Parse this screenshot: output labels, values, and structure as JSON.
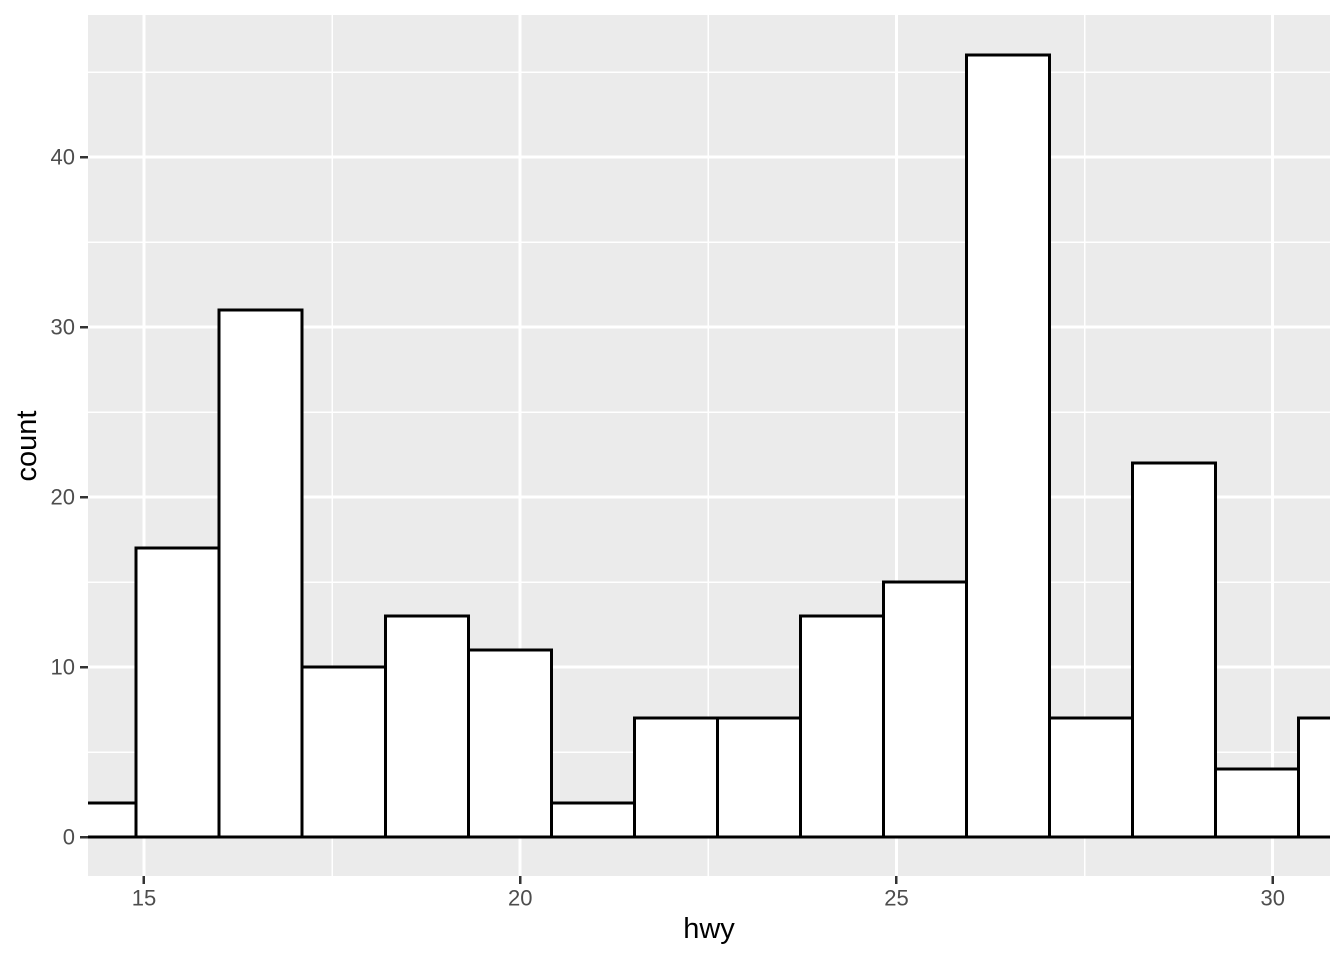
{
  "chart_data": {
    "type": "bar",
    "subtype": "histogram",
    "title": "",
    "xlabel": "hwy",
    "ylabel": "count",
    "bin_edges": [
      13.793,
      14.897,
      16.0,
      17.103,
      18.207,
      19.31,
      20.414,
      21.517,
      22.621,
      23.724,
      24.828,
      25.931,
      27.034,
      28.138,
      29.241,
      30.345,
      31.448
    ],
    "counts": [
      2,
      17,
      31,
      10,
      13,
      11,
      2,
      7,
      7,
      13,
      15,
      46,
      7,
      22,
      4,
      7
    ],
    "bin_width": 1.1034,
    "x_major_ticks": [
      15,
      20,
      25,
      30
    ],
    "x_tick_labels": [
      "15",
      "20",
      "25",
      "30"
    ],
    "x_minor_ticks": [
      17.5,
      22.5,
      27.5
    ],
    "y_major_ticks": [
      0,
      10,
      20,
      30,
      40
    ],
    "y_tick_labels": [
      "0",
      "10",
      "20",
      "30",
      "40"
    ],
    "y_minor_ticks": [
      5,
      15,
      25,
      35,
      45
    ],
    "x_domain": [
      14.256,
      30.761
    ],
    "y_domain": [
      -2.294,
      48.353
    ],
    "grid": "major+minor",
    "legend": "none",
    "colors": {
      "panel_bg": "#EBEBEB",
      "grid": "#FFFFFF",
      "bar_fill": "#FFFFFF",
      "bar_stroke": "#000000",
      "tick_mark": "#333333",
      "tick_text": "#4D4D4D",
      "title_text": "#000000"
    }
  }
}
